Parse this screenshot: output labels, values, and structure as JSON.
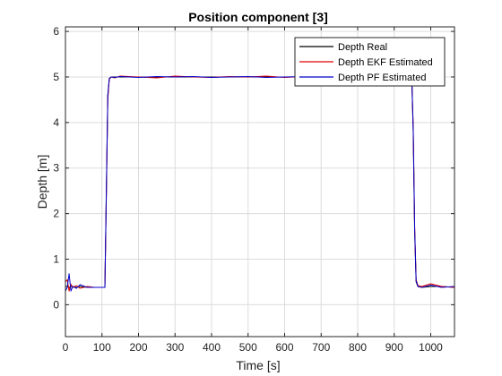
{
  "chart_data": {
    "type": "line",
    "title": "Position component [3]",
    "xlabel": "Time [s]",
    "ylabel": "Depth [m]",
    "xlim": [
      0,
      1065
    ],
    "ylim": [
      -0.7,
      6.1
    ],
    "xticks": [
      0,
      100,
      200,
      300,
      400,
      500,
      600,
      700,
      800,
      900,
      1000
    ],
    "yticks": [
      0,
      1,
      2,
      3,
      4,
      5,
      6
    ],
    "grid": true,
    "legend_position": "top-right",
    "series": [
      {
        "name": "Depth Real",
        "color": "#000000",
        "x": [
          0,
          5,
          10,
          15,
          20,
          30,
          40,
          60,
          80,
          100,
          108,
          112,
          116,
          120,
          125,
          135,
          150,
          200,
          250,
          300,
          350,
          400,
          450,
          500,
          550,
          600,
          650,
          700,
          750,
          800,
          850,
          900,
          940,
          948,
          952,
          956,
          960,
          965,
          975,
          1000,
          1030,
          1065
        ],
        "y": [
          0.4,
          0.4,
          0.38,
          0.4,
          0.4,
          0.38,
          0.4,
          0.38,
          0.38,
          0.38,
          0.38,
          2.5,
          4.6,
          4.95,
          5.0,
          5.0,
          5.0,
          5.0,
          5.0,
          5.0,
          5.0,
          5.0,
          5.0,
          5.0,
          5.0,
          5.0,
          5.0,
          5.0,
          5.0,
          5.0,
          5.0,
          5.0,
          5.0,
          5.0,
          3.8,
          1.6,
          0.5,
          0.4,
          0.38,
          0.4,
          0.4,
          0.38
        ]
      },
      {
        "name": "Depth EKF Estimated",
        "color": "#e00000",
        "x": [
          0,
          5,
          10,
          15,
          20,
          30,
          40,
          60,
          80,
          100,
          108,
          112,
          116,
          120,
          125,
          135,
          150,
          200,
          250,
          300,
          350,
          400,
          450,
          500,
          550,
          600,
          650,
          700,
          750,
          800,
          850,
          900,
          940,
          948,
          952,
          956,
          960,
          965,
          975,
          1000,
          1030,
          1065
        ],
        "y": [
          0.5,
          0.55,
          0.3,
          0.45,
          0.38,
          0.42,
          0.36,
          0.4,
          0.38,
          0.38,
          0.38,
          2.4,
          4.5,
          4.95,
          5.0,
          4.98,
          5.02,
          5.0,
          4.98,
          5.02,
          5.0,
          4.99,
          5.01,
          5.0,
          5.02,
          4.99,
          5.01,
          5.0,
          5.0,
          5.01,
          4.99,
          5.0,
          5.0,
          5.0,
          3.9,
          1.7,
          0.55,
          0.42,
          0.4,
          0.46,
          0.4,
          0.38
        ]
      },
      {
        "name": "Depth PF Estimated",
        "color": "#0000cc",
        "x": [
          0,
          5,
          10,
          15,
          20,
          30,
          40,
          60,
          80,
          100,
          108,
          112,
          116,
          120,
          125,
          135,
          150,
          200,
          250,
          300,
          350,
          400,
          450,
          500,
          550,
          600,
          650,
          700,
          750,
          800,
          850,
          900,
          940,
          948,
          952,
          956,
          960,
          965,
          975,
          1000,
          1030,
          1065
        ],
        "y": [
          0.3,
          0.38,
          0.68,
          0.3,
          0.4,
          0.36,
          0.44,
          0.38,
          0.38,
          0.38,
          0.38,
          2.5,
          4.6,
          4.97,
          5.0,
          4.99,
          5.01,
          4.99,
          5.01,
          5.0,
          5.01,
          4.99,
          5.0,
          5.01,
          4.99,
          5.0,
          5.01,
          5.0,
          5.0,
          5.0,
          5.0,
          5.0,
          5.0,
          5.0,
          3.85,
          1.65,
          0.52,
          0.4,
          0.38,
          0.43,
          0.38,
          0.4
        ]
      }
    ]
  }
}
